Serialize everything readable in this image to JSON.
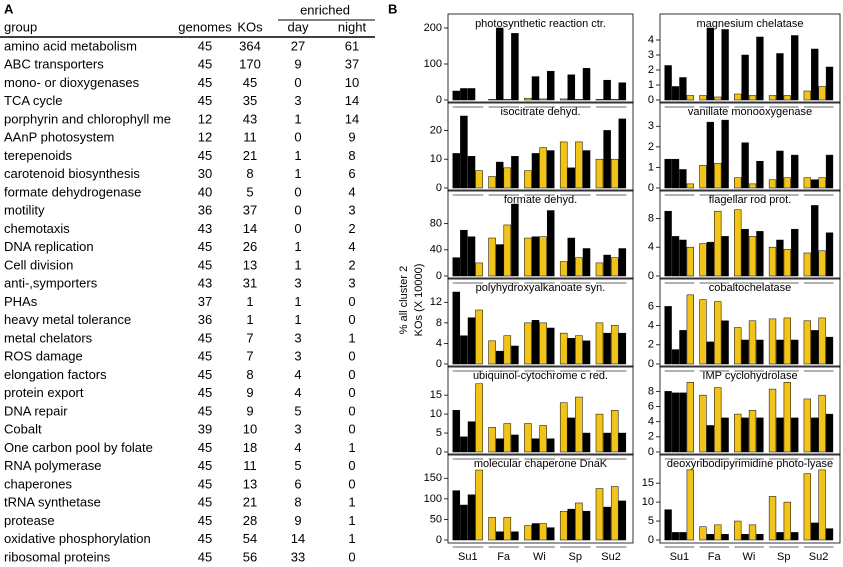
{
  "table": {
    "label": "A",
    "header_group": "enriched",
    "columns": [
      "group",
      "genomes",
      "KOs",
      "day",
      "night"
    ],
    "rows": [
      [
        "amino acid metabolism",
        45,
        364,
        27,
        61
      ],
      [
        "ABC transporters",
        45,
        170,
        9,
        37
      ],
      [
        "mono-  or dioxygenases",
        45,
        45,
        0,
        10
      ],
      [
        "TCA cycle",
        45,
        35,
        3,
        14
      ],
      [
        "porphyrin and chlorophyll me",
        12,
        43,
        1,
        14
      ],
      [
        "AAnP photosystem",
        12,
        11,
        0,
        9
      ],
      [
        "terepenoids",
        45,
        21,
        1,
        8
      ],
      [
        "carotenoid biosynthesis",
        30,
        8,
        1,
        6
      ],
      [
        "formate dehydrogenase",
        40,
        5,
        0,
        4
      ],
      [
        "motility",
        36,
        37,
        0,
        3
      ],
      [
        "chemotaxis",
        43,
        14,
        0,
        2
      ],
      [
        "DNA replication",
        45,
        26,
        1,
        4
      ],
      [
        "Cell division",
        45,
        13,
        1,
        2
      ],
      [
        "anti-,symporters",
        43,
        31,
        3,
        3
      ],
      [
        "PHAs",
        37,
        1,
        1,
        0
      ],
      [
        "heavy metal tolerance",
        36,
        1,
        1,
        0
      ],
      [
        "metal chelators",
        45,
        7,
        3,
        1
      ],
      [
        "ROS damage",
        45,
        7,
        3,
        0
      ],
      [
        "elongation factors",
        45,
        8,
        4,
        0
      ],
      [
        "protein export",
        45,
        9,
        4,
        0
      ],
      [
        "DNA repair",
        45,
        9,
        5,
        0
      ],
      [
        "Cobalt",
        39,
        10,
        3,
        0
      ],
      [
        "One carbon pool by folate",
        45,
        18,
        4,
        1
      ],
      [
        "RNA polymerase",
        45,
        11,
        5,
        0
      ],
      [
        "chaperones",
        45,
        13,
        6,
        0
      ],
      [
        "tRNA synthetase",
        45,
        21,
        8,
        1
      ],
      [
        "protease",
        45,
        28,
        9,
        1
      ],
      [
        "oxidative phosphorylation",
        45,
        54,
        14,
        1
      ],
      [
        "ribosomal proteins",
        45,
        56,
        33,
        0
      ]
    ]
  },
  "panel_b": {
    "label": "B",
    "ylabel": [
      "% all cluster 2",
      "KOs (X 10000)"
    ],
    "x_groups": [
      "Su1",
      "Fa",
      "Wi",
      "Sp",
      "Su2"
    ],
    "bar_colors": [
      "#000000",
      "#000000",
      "#000000",
      "#f2c318",
      "#f2c318",
      "#000000",
      "#f2c318",
      "#000000",
      "#f2c318",
      "#000000",
      "#f2c318",
      "#000000",
      "#f2c318",
      "#000000",
      "#f2c318",
      "#000000",
      "#f2c318",
      "#000000",
      "#f2c318",
      "#000000"
    ]
  },
  "chart_data": [
    {
      "type": "bar",
      "title": "photosynthetic reaction ctr.",
      "ylim": [
        0,
        200
      ],
      "yticks": [
        0,
        100,
        200
      ],
      "values": [
        25,
        32,
        32,
        0,
        2,
        200,
        2,
        185,
        5,
        65,
        3,
        80,
        3,
        70,
        2,
        88,
        2,
        55,
        2,
        48
      ]
    },
    {
      "type": "bar",
      "title": "magnesium chelatase",
      "ylim": [
        0,
        4.8
      ],
      "yticks": [
        0,
        1,
        2,
        3,
        4
      ],
      "values": [
        2.3,
        0.9,
        1.5,
        0.3,
        0.3,
        4.8,
        0.2,
        4.7,
        0.4,
        3.0,
        0.3,
        4.2,
        0.3,
        3.1,
        0.3,
        4.3,
        0.6,
        3.4,
        0.9,
        2.2
      ]
    },
    {
      "type": "bar",
      "title": "isocitrate dehyd.",
      "ylim": [
        0,
        25
      ],
      "yticks": [
        0,
        10,
        20
      ],
      "values": [
        12,
        25,
        11,
        6,
        4,
        9,
        7,
        11,
        6,
        12,
        14,
        13,
        16,
        7,
        16,
        13,
        10,
        20,
        10,
        24
      ]
    },
    {
      "type": "bar",
      "title": "vanillate monooxygenase",
      "ylim": [
        0,
        3.5
      ],
      "yticks": [
        0,
        1,
        2,
        3
      ],
      "values": [
        1.4,
        1.4,
        0.9,
        0.2,
        1.1,
        3.2,
        1.2,
        3.3,
        0.5,
        2.2,
        0.2,
        1.3,
        0.4,
        1.8,
        0.5,
        1.6,
        0.5,
        0.4,
        0.5,
        1.6
      ]
    },
    {
      "type": "bar",
      "title": "formate dehyd.",
      "ylim": [
        0,
        110
      ],
      "yticks": [
        0,
        40,
        80
      ],
      "values": [
        28,
        70,
        60,
        20,
        58,
        48,
        78,
        110,
        58,
        60,
        60,
        100,
        22,
        58,
        28,
        42,
        20,
        32,
        28,
        42
      ]
    },
    {
      "type": "bar",
      "title": "flagellar rod prot.",
      "ylim": [
        0,
        10
      ],
      "yticks": [
        0,
        4,
        8
      ],
      "values": [
        9,
        5.5,
        5,
        4,
        4.5,
        4.7,
        9,
        5.5,
        9.2,
        6.5,
        5.5,
        6.2,
        4,
        5,
        3.7,
        6.5,
        3.2,
        9.8,
        3.5,
        6
      ]
    },
    {
      "type": "bar",
      "title": "polyhydroxyalkanoate syn.",
      "ylim": [
        0,
        14
      ],
      "yticks": [
        0,
        4,
        8,
        12
      ],
      "values": [
        14,
        5.5,
        9,
        10.5,
        4.5,
        2.5,
        5.5,
        3.5,
        8,
        8.5,
        8,
        7,
        6,
        5,
        5.5,
        4.5,
        8,
        6,
        7.5,
        6
      ]
    },
    {
      "type": "bar",
      "title": "cobaltochelatase",
      "ylim": [
        0,
        7.5
      ],
      "yticks": [
        0,
        2,
        4,
        6
      ],
      "values": [
        6,
        1.5,
        3.5,
        7.2,
        6.7,
        2.3,
        6.5,
        4.5,
        3.8,
        2.5,
        4.5,
        2.5,
        4.7,
        2.5,
        4.8,
        2.5,
        4.5,
        3.5,
        4.8,
        2.8
      ]
    },
    {
      "type": "bar",
      "title": "ubiquinol-cytochrome c red.",
      "ylim": [
        0,
        19
      ],
      "yticks": [
        0,
        5,
        10,
        15
      ],
      "values": [
        11,
        4,
        8,
        18,
        6.5,
        3.5,
        7.5,
        4.5,
        7.5,
        3.5,
        7,
        3.5,
        13,
        9,
        14.5,
        5,
        10,
        5,
        11,
        5
      ]
    },
    {
      "type": "bar",
      "title": "IMP cyclohydrolase",
      "ylim": [
        0,
        9.5
      ],
      "yticks": [
        0,
        2,
        4,
        6,
        8
      ],
      "values": [
        8,
        7.8,
        7.8,
        9.2,
        7.5,
        3.5,
        8.5,
        4.5,
        5,
        4.5,
        5.5,
        4.5,
        8.3,
        4.5,
        9.2,
        4.5,
        7,
        4.5,
        7.5,
        5
      ]
    },
    {
      "type": "bar",
      "title": "molecular chaperone DnaK",
      "ylim": [
        0,
        175
      ],
      "yticks": [
        0,
        50,
        100,
        150
      ],
      "values": [
        120,
        85,
        110,
        170,
        55,
        20,
        55,
        20,
        35,
        40,
        40,
        30,
        70,
        75,
        90,
        70,
        125,
        80,
        130,
        95
      ]
    },
    {
      "type": "bar",
      "title": "deoxyribodipyrimidine photo-lyase",
      "ylim": [
        0,
        19
      ],
      "yticks": [
        0,
        5,
        10,
        15
      ],
      "values": [
        8,
        2,
        2,
        18.5,
        3.5,
        1.5,
        4,
        1.5,
        5,
        1.5,
        4,
        1.5,
        11.5,
        2,
        10,
        2,
        17.5,
        4.5,
        18.5,
        3
      ]
    }
  ]
}
